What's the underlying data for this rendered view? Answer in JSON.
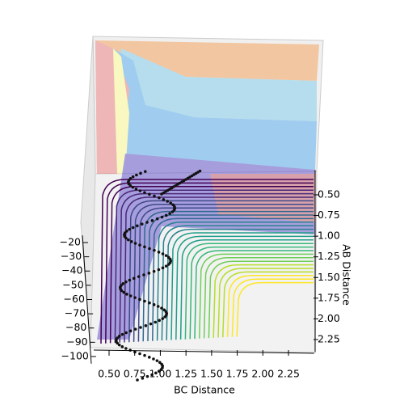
{
  "chart_data": {
    "type": "surface3d",
    "xlabel": "BC Distance",
    "ylabel": "AB Distance",
    "xlim": [
      0.35,
      2.5
    ],
    "xticks": [
      {
        "value": 0.5,
        "label": "0.50"
      },
      {
        "value": 0.75,
        "label": "0.75"
      },
      {
        "value": 1.0,
        "label": "1.00"
      },
      {
        "value": 1.25,
        "label": "1.25"
      },
      {
        "value": 1.5,
        "label": "1.50"
      },
      {
        "value": 1.75,
        "label": "1.75"
      },
      {
        "value": 2.0,
        "label": "2.00"
      },
      {
        "value": 2.25,
        "label": "2.25"
      }
    ],
    "ylim": [
      0.2,
      2.4
    ],
    "yticks": [
      {
        "value": 0.5,
        "label": "0.50"
      },
      {
        "value": 0.75,
        "label": "0.75"
      },
      {
        "value": 1.0,
        "label": "1.00"
      },
      {
        "value": 1.25,
        "label": "1.25"
      },
      {
        "value": 1.5,
        "label": "1.50"
      },
      {
        "value": 1.75,
        "label": "1.75"
      },
      {
        "value": 2.0,
        "label": "2.00"
      },
      {
        "value": 2.25,
        "label": "2.25"
      }
    ],
    "zlim": [
      -105,
      -15
    ],
    "zticks": [
      {
        "value": -20,
        "label": "−20"
      },
      {
        "value": -30,
        "label": "−30"
      },
      {
        "value": -40,
        "label": "−40"
      },
      {
        "value": -50,
        "label": "−50"
      },
      {
        "value": -60,
        "label": "−60"
      },
      {
        "value": -70,
        "label": "−70"
      },
      {
        "value": -80,
        "label": "−80"
      },
      {
        "value": -90,
        "label": "−90"
      },
      {
        "value": -100,
        "label": "−100"
      }
    ]
  }
}
